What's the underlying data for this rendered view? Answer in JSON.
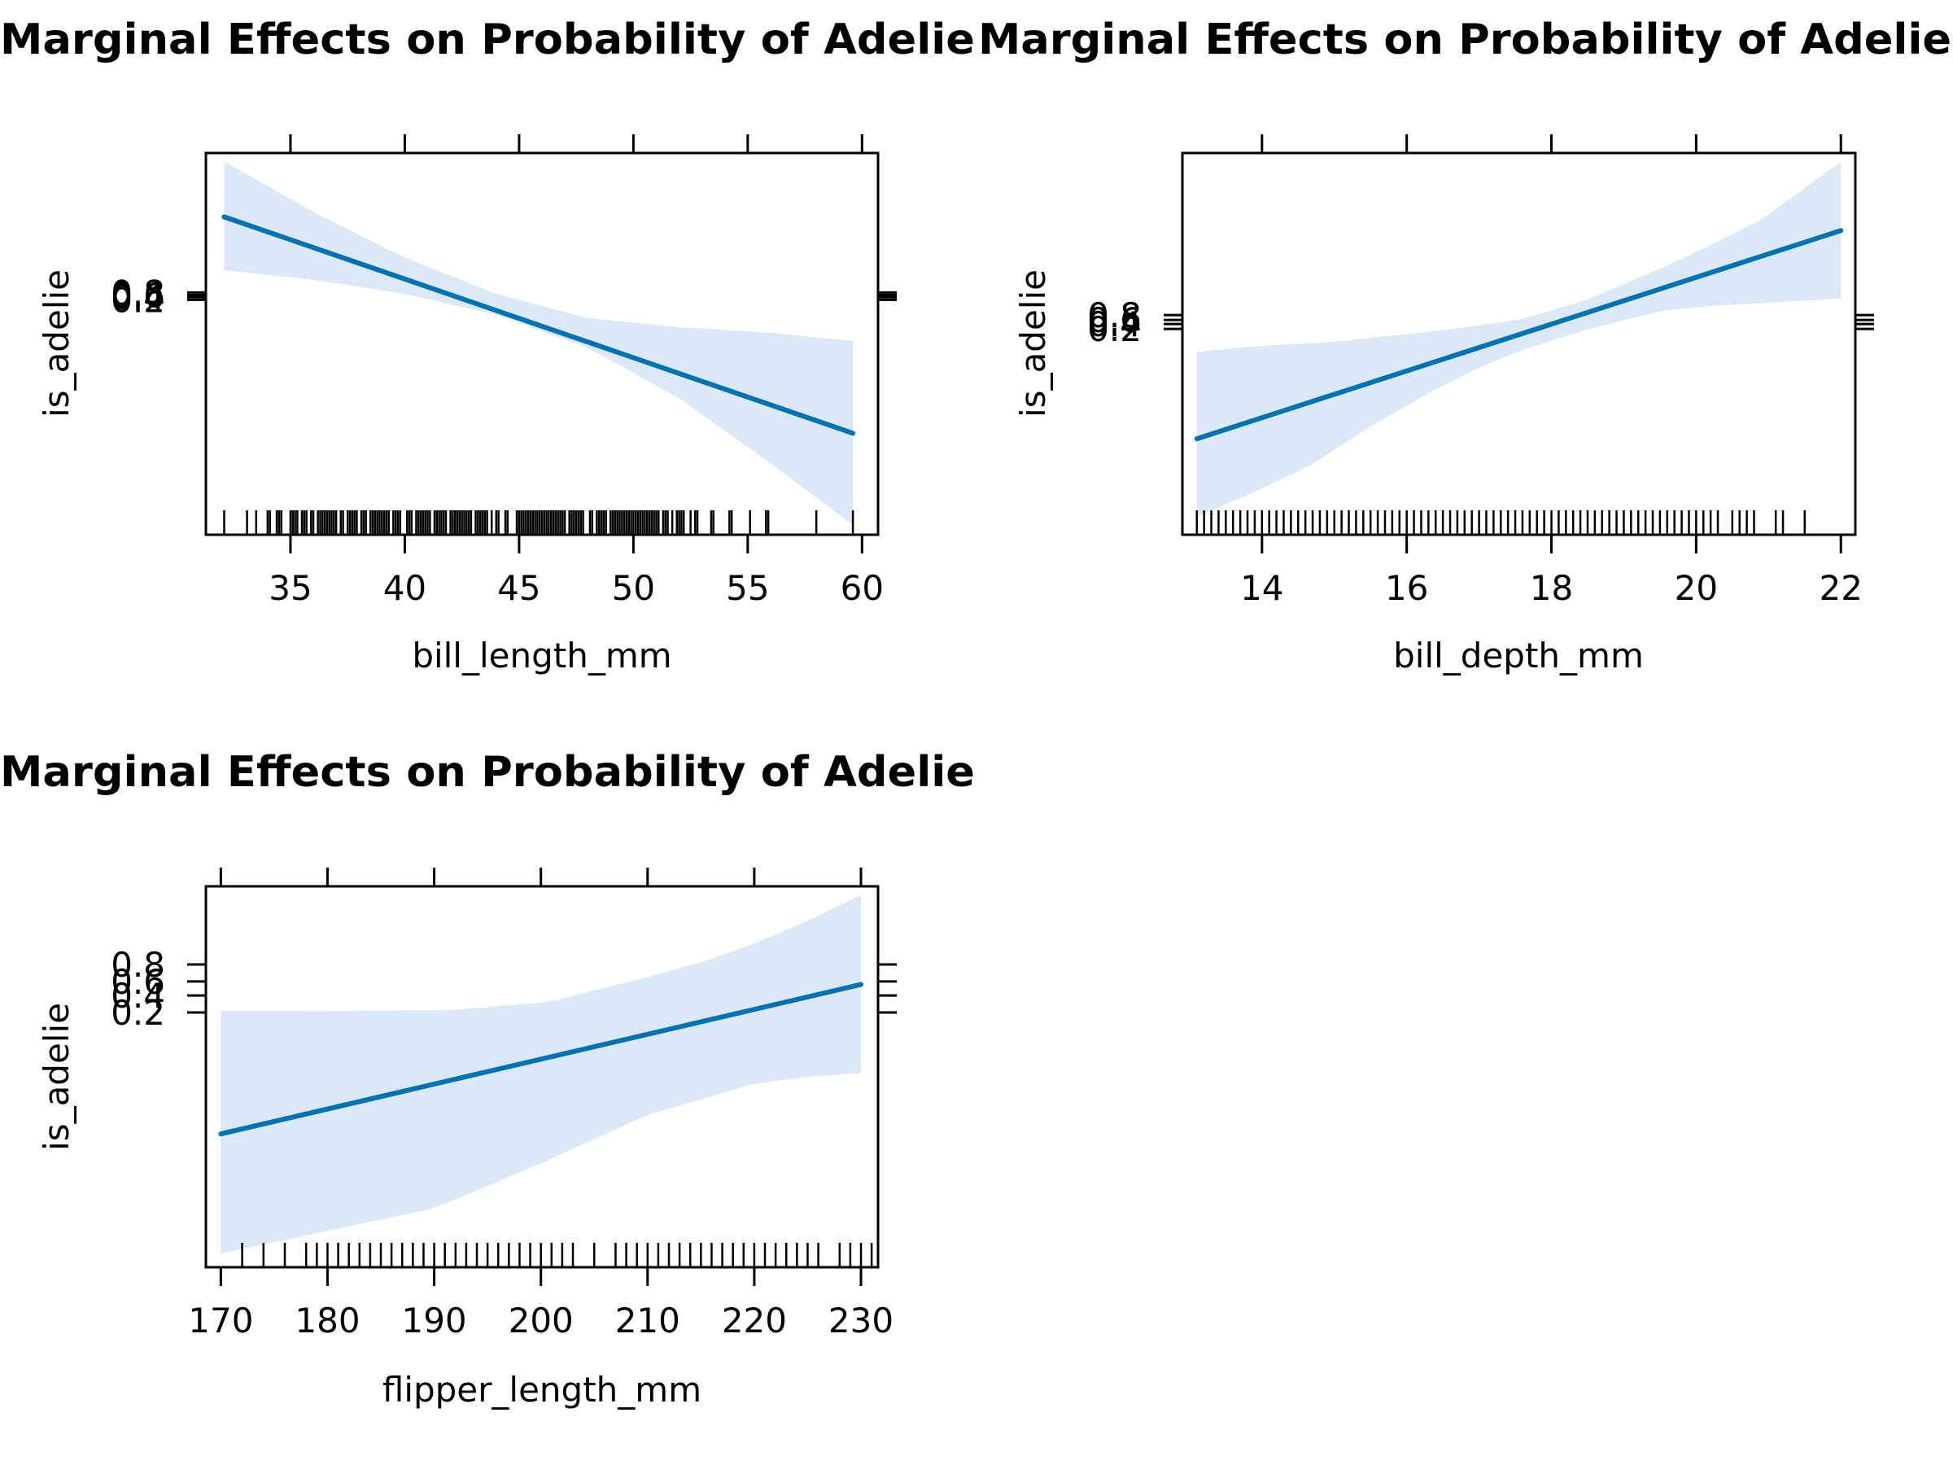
{
  "colors": {
    "fit_line": "#0072B2",
    "ci_band": "#DAE9F5",
    "axis": "#000000"
  },
  "chart_data": [
    {
      "type": "line",
      "title": "Marginal Effects on Probability of Adelie",
      "xlabel": "bill_length_mm",
      "ylabel": "is_adelie",
      "xlim": [
        31.3,
        60.7
      ],
      "ylim": [
        -90,
        54
      ],
      "y_scale": "logit",
      "xticks": [
        35,
        40,
        45,
        50,
        55,
        60
      ],
      "xtick_labels": [
        "35",
        "40",
        "45",
        "50",
        "55",
        "60"
      ],
      "yticks": [
        0.2,
        0.4,
        0.6,
        0.8
      ],
      "ytick_labels": [
        "0.2",
        "0.4",
        "0.6",
        "0.8"
      ],
      "fit": {
        "x": [
          32.1,
          59.6
        ],
        "y": [
          29.9,
          -51.7
        ]
      },
      "ci_upper": {
        "x": [
          32.1,
          36,
          40,
          44,
          48,
          52,
          56,
          59.6
        ],
        "y": [
          50.8,
          31.7,
          14.5,
          0.9,
          -8.3,
          -11.7,
          -13.8,
          -16.9
        ]
      },
      "ci_lower": {
        "x": [
          32.1,
          36,
          40,
          44,
          48,
          52,
          56,
          59.6
        ],
        "y": [
          9.8,
          6.2,
          0.9,
          -7.1,
          -19.4,
          -38.5,
          -63.1,
          -86.2
        ]
      },
      "rug": [
        32.1,
        33.1,
        33.5,
        34.0,
        34.1,
        34.4,
        34.5,
        34.6,
        35.0,
        35.1,
        35.2,
        35.3,
        35.5,
        35.6,
        35.7,
        35.9,
        36.0,
        36.2,
        36.3,
        36.4,
        36.5,
        36.6,
        36.7,
        36.8,
        36.9,
        37.0,
        37.2,
        37.3,
        37.5,
        37.6,
        37.7,
        37.8,
        37.9,
        38.1,
        38.2,
        38.3,
        38.5,
        38.6,
        38.7,
        38.8,
        38.9,
        39.0,
        39.1,
        39.2,
        39.3,
        39.5,
        39.6,
        39.7,
        39.8,
        40.1,
        40.2,
        40.3,
        40.5,
        40.6,
        40.7,
        40.8,
        40.9,
        41.0,
        41.1,
        41.3,
        41.4,
        41.5,
        41.6,
        41.7,
        41.8,
        42.0,
        42.1,
        42.2,
        42.3,
        42.4,
        42.5,
        42.6,
        42.7,
        42.8,
        42.9,
        43.1,
        43.2,
        43.3,
        43.4,
        43.5,
        43.6,
        43.8,
        44.0,
        44.1,
        44.4,
        44.5,
        44.9,
        45.0,
        45.1,
        45.2,
        45.3,
        45.4,
        45.5,
        45.6,
        45.7,
        45.8,
        45.9,
        46.0,
        46.1,
        46.2,
        46.3,
        46.4,
        46.5,
        46.6,
        46.7,
        46.8,
        46.9,
        47.0,
        47.2,
        47.3,
        47.4,
        47.5,
        47.6,
        47.7,
        47.8,
        48.1,
        48.2,
        48.4,
        48.5,
        48.6,
        48.7,
        48.8,
        49.0,
        49.1,
        49.2,
        49.3,
        49.4,
        49.5,
        49.6,
        49.7,
        49.8,
        49.9,
        50.0,
        50.1,
        50.2,
        50.3,
        50.4,
        50.5,
        50.6,
        50.7,
        50.8,
        50.9,
        51.0,
        51.1,
        51.3,
        51.4,
        51.5,
        51.7,
        51.9,
        52.0,
        52.1,
        52.2,
        52.5,
        52.7,
        52.8,
        53.4,
        53.5,
        54.2,
        54.3,
        55.1,
        55.8,
        55.9,
        58.0,
        59.6
      ]
    },
    {
      "type": "line",
      "title": "Marginal Effects on Probability of Adelie",
      "xlabel": "bill_depth_mm",
      "ylabel": "is_adelie",
      "xlim": [
        12.9,
        22.2
      ],
      "ylim": [
        -42.8,
        34
      ],
      "y_scale": "logit",
      "xticks": [
        14,
        16,
        18,
        20,
        22
      ],
      "xtick_labels": [
        "14",
        "16",
        "18",
        "20",
        "22"
      ],
      "yticks": [
        0.2,
        0.4,
        0.6,
        0.8
      ],
      "ytick_labels": [
        "0.2",
        "0.4",
        "0.6",
        "0.8"
      ],
      "fit": {
        "x": [
          13.1,
          22.0
        ],
        "y": [
          -23.5,
          18.4
        ]
      },
      "ci_upper": {
        "x": [
          13.1,
          14.0,
          15.0,
          15.7,
          16.6,
          17.6,
          18.5,
          19.5,
          20.2,
          20.9,
          22.0
        ],
        "y": [
          -6.0,
          -4.8,
          -4.0,
          -2.9,
          -1.5,
          0.6,
          4.5,
          10.7,
          15.5,
          20.6,
          32.2
        ]
      },
      "ci_lower": {
        "x": [
          13.1,
          14.0,
          14.7,
          15.5,
          16.3,
          17.0,
          17.6,
          18.5,
          19.5,
          20.2,
          20.9,
          22.0
        ],
        "y": [
          -39.2,
          -33.5,
          -28.6,
          -21.0,
          -14.3,
          -9.2,
          -5.6,
          -1.5,
          2.2,
          3.2,
          3.8,
          4.7
        ]
      },
      "rug": [
        13.1,
        13.2,
        13.3,
        13.4,
        13.5,
        13.6,
        13.7,
        13.8,
        13.9,
        14.0,
        14.1,
        14.2,
        14.3,
        14.4,
        14.5,
        14.6,
        14.7,
        14.8,
        14.9,
        15.0,
        15.1,
        15.2,
        15.3,
        15.4,
        15.5,
        15.6,
        15.7,
        15.8,
        15.9,
        16.0,
        16.1,
        16.2,
        16.3,
        16.4,
        16.5,
        16.6,
        16.7,
        16.8,
        16.9,
        17.0,
        17.1,
        17.2,
        17.3,
        17.4,
        17.5,
        17.6,
        17.7,
        17.8,
        17.9,
        18.0,
        18.1,
        18.2,
        18.3,
        18.4,
        18.5,
        18.6,
        18.7,
        18.8,
        18.9,
        19.0,
        19.1,
        19.2,
        19.3,
        19.4,
        19.5,
        19.6,
        19.7,
        19.8,
        19.9,
        20.0,
        20.1,
        20.2,
        20.3,
        20.5,
        20.6,
        20.7,
        20.8,
        21.1,
        21.2,
        21.5
      ]
    },
    {
      "type": "line",
      "title": "Marginal Effects on Probability of Adelie",
      "xlabel": "flipper_length_mm",
      "ylabel": "is_adelie",
      "xlim": [
        168.6,
        231.6
      ],
      "ylim": [
        -16.1,
        5.9
      ],
      "y_scale": "logit",
      "xticks": [
        170,
        180,
        190,
        200,
        210,
        220,
        230
      ],
      "xtick_labels": [
        "170",
        "180",
        "190",
        "200",
        "210",
        "220",
        "230"
      ],
      "yticks": [
        0.2,
        0.4,
        0.6,
        0.8
      ],
      "ytick_labels": [
        "0.2",
        "0.4",
        "0.6",
        "0.8"
      ],
      "fit": {
        "x": [
          170,
          230
        ],
        "y": [
          -8.4,
          0.23
        ]
      },
      "ci_upper": {
        "x": [
          170,
          180,
          191.6,
          200.5,
          209.3,
          215,
          220,
          225,
          230
        ],
        "y": [
          -1.3,
          -1.3,
          -1.25,
          -0.8,
          0.55,
          1.5,
          2.6,
          3.9,
          5.4
        ]
      },
      "ci_lower": {
        "x": [
          170,
          180,
          190,
          200,
          210,
          220,
          225,
          230
        ],
        "y": [
          -15.3,
          -14.0,
          -12.7,
          -10.1,
          -7.3,
          -5.5,
          -5.1,
          -4.9
        ]
      },
      "rug": [
        172,
        174,
        176,
        178,
        179,
        180,
        181,
        182,
        183,
        184,
        185,
        186,
        187,
        188,
        189,
        190,
        191,
        192,
        193,
        194,
        195,
        196,
        197,
        198,
        199,
        200,
        201,
        202,
        203,
        205,
        207,
        208,
        209,
        210,
        211,
        212,
        213,
        214,
        215,
        216,
        217,
        218,
        219,
        220,
        221,
        222,
        223,
        224,
        225,
        226,
        228,
        229,
        230,
        231
      ]
    }
  ]
}
